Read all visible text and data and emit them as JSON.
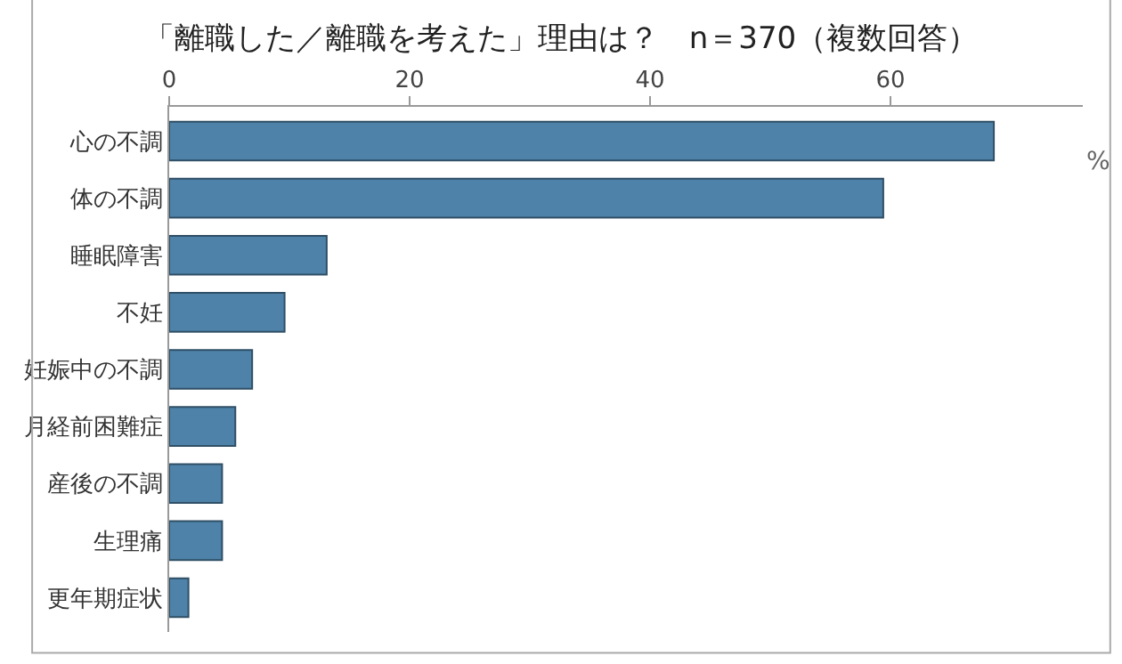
{
  "chart_data": {
    "type": "bar",
    "orientation": "horizontal",
    "title": "「離職した／離職を考えた」理由は？　n＝370（複数回答）",
    "categories": [
      "心の不調",
      "体の不調",
      "睡眠障害",
      "不妊",
      "妊娠中の不調",
      "月経前困難症",
      "産後の不調",
      "生理痛",
      "更年期症状"
    ],
    "values": [
      68.6,
      59.4,
      13.1,
      9.6,
      6.9,
      5.5,
      4.4,
      4.4,
      1.6
    ],
    "color": "#4e82a8",
    "xlim": [
      0,
      76
    ],
    "xticks": [
      0,
      20,
      40,
      60
    ],
    "grid": false,
    "annotations": [
      "%"
    ]
  }
}
